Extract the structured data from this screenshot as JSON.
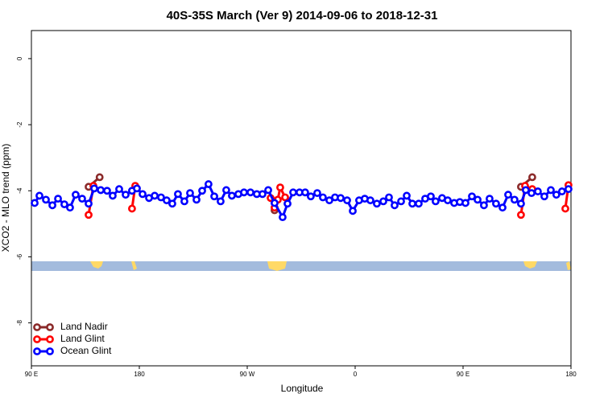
{
  "chart_data": {
    "type": "line",
    "title": "40S-35S March (Ver 9)   2014-09-06 to 2018-12-31",
    "x_label": "Longitude",
    "y_label": "XCO2 - MLO trend (ppm)",
    "xlim": [
      90,
      540
    ],
    "xticks": [
      {
        "value": 90,
        "label": "90 E"
      },
      {
        "value": 180,
        "label": "180"
      },
      {
        "value": 270,
        "label": "90 W"
      },
      {
        "value": 360,
        "label": "0"
      },
      {
        "value": 450,
        "label": "90 E"
      },
      {
        "value": 540,
        "label": "180"
      }
    ],
    "ylim": [
      -9.3,
      0.85
    ],
    "yticks": [
      0,
      -2,
      -4,
      -6,
      -8
    ],
    "legend": "bottom-left",
    "series": [
      {
        "name": "Land Nadir",
        "color": "#8b2a2a",
        "x": [
          137.7,
          146.9,
          null,
          292.8,
          null,
          498.3,
          507.7
        ],
        "values": [
          -3.88,
          -3.59,
          null,
          -4.59,
          null,
          -3.88,
          -3.59
        ]
      },
      {
        "name": "Land Glint",
        "color": "#ff0000",
        "x": [
          137.7,
          141.7,
          null,
          173.9,
          176.6,
          null,
          289.5,
          292.8,
          295.5,
          297.5,
          301.6,
          null,
          498.3,
          501.7,
          507.7,
          null,
          535.3,
          537.9
        ],
        "values": [
          -4.73,
          -3.85,
          null,
          -4.54,
          -3.85,
          null,
          -4.22,
          -4.51,
          -4.27,
          -3.9,
          -4.2,
          null,
          -4.73,
          -3.85,
          -3.95,
          null,
          -4.54,
          -3.83
        ]
      },
      {
        "name": "Ocean Glint",
        "color": "#0000ff",
        "x": [
          92.7,
          96.7,
          102.1,
          107.5,
          112.2,
          117.5,
          122.2,
          126.9,
          132.3,
          137.7,
          142.4,
          147.8,
          153.1,
          157.8,
          163.2,
          168.6,
          173.9,
          178.0,
          182.7,
          188.1,
          192.8,
          198.1,
          202.8,
          207.5,
          212.2,
          217.6,
          222.3,
          227.7,
          232.4,
          237.7,
          242.5,
          247.8,
          252.5,
          257.2,
          262.6,
          267.3,
          272.7,
          278.0,
          282.7,
          287.5,
          292.8,
          299.5,
          303.6,
          308.3,
          313.6,
          318.3,
          323.0,
          328.4,
          333.1,
          338.5,
          343.2,
          347.9,
          353.3,
          358.0,
          363.3,
          368.0,
          372.7,
          378.1,
          383.5,
          388.2,
          392.9,
          398.3,
          403.0,
          407.7,
          413.0,
          418.4,
          423.1,
          427.1,
          432.5,
          437.2,
          442.6,
          447.3,
          452.0,
          457.4,
          462.1,
          467.4,
          472.1,
          477.5,
          482.9,
          487.6,
          492.9,
          498.3,
          502.3,
          507.1,
          512.4,
          517.8,
          523.2,
          527.8,
          532.5,
          537.9
        ],
        "values": [
          -4.37,
          -4.15,
          -4.27,
          -4.44,
          -4.24,
          -4.41,
          -4.51,
          -4.12,
          -4.24,
          -4.39,
          -3.93,
          -3.98,
          -4.0,
          -4.15,
          -3.95,
          -4.12,
          -4.0,
          -3.93,
          -4.1,
          -4.22,
          -4.15,
          -4.2,
          -4.29,
          -4.39,
          -4.1,
          -4.32,
          -4.07,
          -4.27,
          -4.0,
          -3.8,
          -4.17,
          -4.32,
          -3.98,
          -4.15,
          -4.1,
          -4.05,
          -4.05,
          -4.1,
          -4.1,
          -3.98,
          -4.37,
          -4.8,
          -4.39,
          -4.05,
          -4.05,
          -4.05,
          -4.17,
          -4.07,
          -4.2,
          -4.29,
          -4.2,
          -4.22,
          -4.29,
          -4.61,
          -4.29,
          -4.24,
          -4.29,
          -4.39,
          -4.32,
          -4.2,
          -4.44,
          -4.32,
          -4.15,
          -4.39,
          -4.39,
          -4.24,
          -4.17,
          -4.32,
          -4.22,
          -4.29,
          -4.37,
          -4.34,
          -4.37,
          -4.17,
          -4.27,
          -4.44,
          -4.24,
          -4.39,
          -4.51,
          -4.12,
          -4.27,
          -4.39,
          -3.98,
          -4.07,
          -4.02,
          -4.17,
          -3.98,
          -4.12,
          -4.02,
          -3.95
        ]
      }
    ]
  }
}
